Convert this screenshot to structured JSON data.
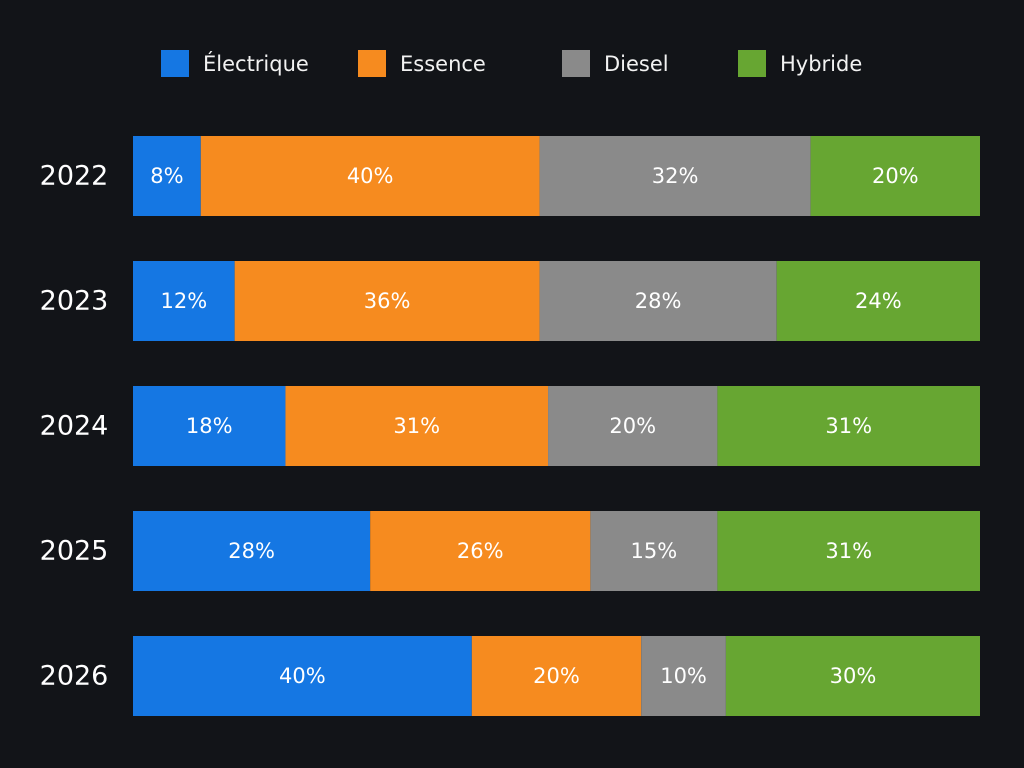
{
  "colors": {
    "background": "#121418",
    "electrique": "#1577e3",
    "essence": "#f68b1f",
    "diesel": "#8a8a8a",
    "hybride": "#67a632"
  },
  "legend": [
    {
      "label": "Électrique",
      "color_key": "electrique"
    },
    {
      "label": "Essence",
      "color_key": "essence"
    },
    {
      "label": "Diesel",
      "color_key": "diesel"
    },
    {
      "label": "Hybride",
      "color_key": "hybride"
    }
  ],
  "chart_data": {
    "type": "bar",
    "orientation": "horizontal",
    "stacked": true,
    "normalized": true,
    "categories": [
      "2022",
      "2023",
      "2024",
      "2025",
      "2026"
    ],
    "series": [
      {
        "name": "Électrique",
        "color_key": "electrique",
        "values": [
          8,
          12,
          18,
          28,
          40
        ],
        "labels": [
          "8%",
          "12%",
          "18%",
          "28%",
          "40%"
        ]
      },
      {
        "name": "Essence",
        "color_key": "essence",
        "values": [
          40,
          36,
          31,
          26,
          20
        ],
        "labels": [
          "40%",
          "36%",
          "31%",
          "26%",
          "20%"
        ]
      },
      {
        "name": "Diesel",
        "color_key": "diesel",
        "values": [
          32,
          28,
          20,
          15,
          10
        ],
        "labels": [
          "32%",
          "28%",
          "20%",
          "15%",
          "10%"
        ]
      },
      {
        "name": "Hybride",
        "color_key": "hybride",
        "values": [
          20,
          24,
          31,
          31,
          30
        ],
        "labels": [
          "20%",
          "24%",
          "31%",
          "31%",
          "30%"
        ]
      }
    ],
    "title": "",
    "xlabel": "",
    "ylabel": "",
    "legend_position": "top",
    "grid": false
  }
}
